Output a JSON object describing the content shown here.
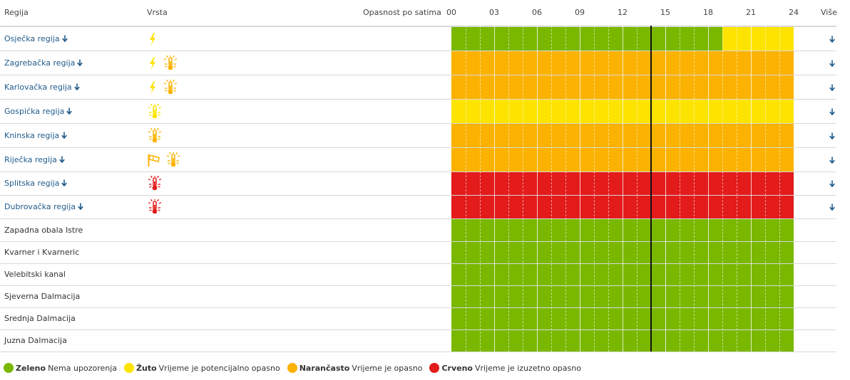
{
  "header": {
    "regija": "Regija",
    "vrsta": "Vrsta",
    "opasnost": "Opasnost po satima",
    "vise": "Više",
    "hours": [
      "00",
      "03",
      "06",
      "09",
      "12",
      "15",
      "18",
      "21",
      "24"
    ]
  },
  "colors": {
    "green": "#7ab800",
    "yellow": "#fce300",
    "orange": "#fbb200",
    "red": "#e31b1b",
    "link": "#1f5a8a",
    "now_line": "#111111"
  },
  "current_hour": 14,
  "regions": [
    {
      "name": "Osječka regija",
      "link": true,
      "icons": [
        "lightning-icon-yellow"
      ],
      "warning_segments": [
        {
          "from": 0,
          "to": 19,
          "level": "green"
        },
        {
          "from": 19,
          "to": 24,
          "level": "yellow"
        }
      ]
    },
    {
      "name": "Zagrebačka regija",
      "link": true,
      "icons": [
        "lightning-icon-yellow",
        "thermometer-icon-orange"
      ],
      "warning_segments": [
        {
          "from": 0,
          "to": 24,
          "level": "orange"
        }
      ]
    },
    {
      "name": "Karlovačka regija",
      "link": true,
      "icons": [
        "lightning-icon-yellow",
        "thermometer-icon-orange"
      ],
      "warning_segments": [
        {
          "from": 0,
          "to": 24,
          "level": "orange"
        }
      ]
    },
    {
      "name": "Gospićka regija",
      "link": true,
      "icons": [
        "thermometer-icon-yellow"
      ],
      "warning_segments": [
        {
          "from": 0,
          "to": 24,
          "level": "yellow"
        }
      ]
    },
    {
      "name": "Kninska regija",
      "link": true,
      "icons": [
        "thermometer-icon-orange"
      ],
      "warning_segments": [
        {
          "from": 0,
          "to": 24,
          "level": "orange"
        }
      ]
    },
    {
      "name": "Riječka regija",
      "link": true,
      "icons": [
        "wind-icon-orange",
        "thermometer-icon-orange"
      ],
      "warning_segments": [
        {
          "from": 0,
          "to": 24,
          "level": "orange"
        }
      ]
    },
    {
      "name": "Splitska regija",
      "link": true,
      "icons": [
        "thermometer-icon-red"
      ],
      "warning_segments": [
        {
          "from": 0,
          "to": 24,
          "level": "red"
        }
      ]
    },
    {
      "name": "Dubrovačka regija",
      "link": true,
      "icons": [
        "thermometer-icon-red"
      ],
      "warning_segments": [
        {
          "from": 0,
          "to": 24,
          "level": "red"
        }
      ]
    },
    {
      "name": "Zapadna obala Istre",
      "link": false,
      "icons": [],
      "warning_segments": [
        {
          "from": 0,
          "to": 24,
          "level": "green"
        }
      ]
    },
    {
      "name": "Kvarner i Kvarneric",
      "link": false,
      "icons": [],
      "warning_segments": [
        {
          "from": 0,
          "to": 24,
          "level": "green"
        }
      ]
    },
    {
      "name": "Velebitski kanal",
      "link": false,
      "icons": [],
      "warning_segments": [
        {
          "from": 0,
          "to": 24,
          "level": "green"
        }
      ]
    },
    {
      "name": "Sjeverna Dalmacija",
      "link": false,
      "icons": [],
      "warning_segments": [
        {
          "from": 0,
          "to": 24,
          "level": "green"
        }
      ]
    },
    {
      "name": "Srednja Dalmacija",
      "link": false,
      "icons": [],
      "warning_segments": [
        {
          "from": 0,
          "to": 24,
          "level": "green"
        }
      ]
    },
    {
      "name": "Juzna Dalmacija",
      "link": false,
      "icons": [],
      "warning_segments": [
        {
          "from": 0,
          "to": 24,
          "level": "green"
        }
      ]
    }
  ],
  "legend": [
    {
      "level": "green",
      "label": "Zeleno",
      "text": "Nema upozorenja"
    },
    {
      "level": "yellow",
      "label": "Žuto",
      "text": "Vrijeme je potencijalno opasno"
    },
    {
      "level": "orange",
      "label": "Narančasto",
      "text": "Vrijeme je opasno"
    },
    {
      "level": "red",
      "label": "Crveno",
      "text": "Vrijeme je izuzetno opasno"
    }
  ]
}
